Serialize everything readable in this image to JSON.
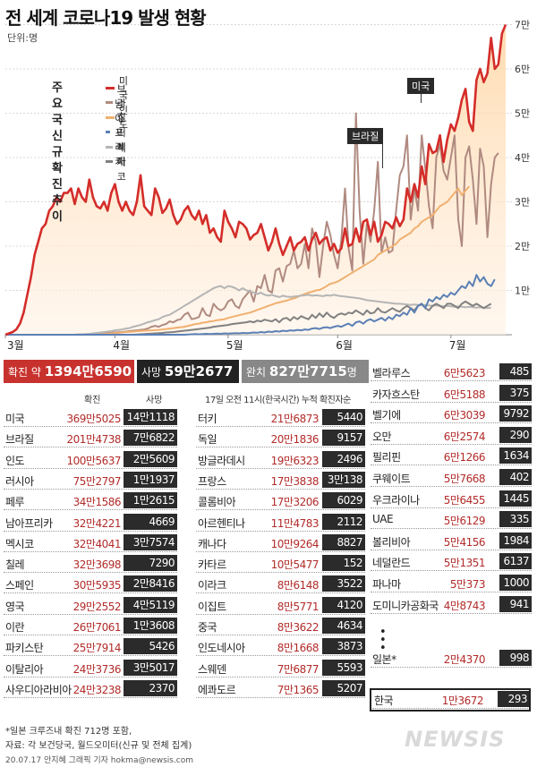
{
  "title": "전 세계 코로나19 발생 현황",
  "unit": "단위:명",
  "legend_title": [
    "주요국",
    "신규확진",
    "추이"
  ],
  "annotations": {
    "us": "미국",
    "brazil": "브라질"
  },
  "chart_data": {
    "type": "line",
    "title": "전 세계 코로나19 발생 현황",
    "xlabel": "",
    "ylabel": "",
    "x_tick_labels": [
      "3월",
      "4월",
      "5월",
      "6월",
      "7월"
    ],
    "y_tick_labels": [
      "1만",
      "2만",
      "3만",
      "4만",
      "5만",
      "6만",
      "7만"
    ],
    "ylim": [
      0,
      72000
    ],
    "grid": true,
    "legend_position": "left",
    "series": [
      {
        "name": "미국",
        "color": "#d42d2a",
        "fill": true,
        "values": [
          0,
          300,
          600,
          1200,
          2500,
          5000,
          9000,
          13000,
          18000,
          21000,
          24000,
          25000,
          28000,
          29000,
          31000,
          30000,
          32000,
          32000,
          33000,
          29500,
          33000,
          31000,
          30000,
          35000,
          31000,
          29000,
          28500,
          30000,
          28000,
          32000,
          34000,
          30000,
          28000,
          30000,
          28000,
          27000,
          30000,
          36000,
          29000,
          28000,
          27000,
          33000,
          31000,
          27500,
          28500,
          30500,
          27000,
          25000,
          26000,
          28000,
          29000,
          27000,
          26000,
          28000,
          25000,
          27000,
          23000,
          24000,
          22000,
          21000,
          28000,
          25500,
          24000,
          22000,
          25500,
          25000,
          24000,
          21500,
          22500,
          23000,
          25000,
          22000,
          19000,
          21000,
          24000,
          20500,
          18000,
          20000,
          22000,
          19000,
          20500,
          21000,
          22000,
          19000,
          21500,
          23000,
          20500,
          21500,
          22000,
          19000,
          20500,
          18500,
          19500,
          24000,
          20000,
          20500,
          24000,
          21000,
          25500,
          26000,
          22500,
          25500,
          21000,
          22500,
          25500,
          25000,
          24000,
          26500,
          24500,
          26000,
          33000,
          30000,
          34000,
          31000,
          38000,
          34000,
          43000,
          41000,
          41500,
          45000,
          39000,
          44000,
          47500,
          46000,
          49000,
          53000,
          55500,
          48000,
          46000,
          57500,
          60000,
          57000,
          59000,
          67000,
          60000,
          61000,
          68000,
          70000
        ]
      },
      {
        "name": "브라질",
        "color": "#b08a80",
        "fill": false,
        "values": [
          0,
          0,
          0,
          0,
          0,
          0,
          0,
          0,
          0,
          0,
          0,
          0,
          0,
          0,
          0,
          0,
          0,
          0,
          0,
          0,
          50,
          80,
          100,
          150,
          200,
          250,
          300,
          350,
          400,
          450,
          500,
          550,
          600,
          700,
          800,
          900,
          1000,
          1100,
          1200,
          1400,
          1800,
          2000,
          1800,
          2200,
          2400,
          3000,
          2800,
          3300,
          3500,
          4500,
          5000,
          3500,
          3700,
          4000,
          6000,
          4500,
          4200,
          7000,
          6000,
          5500,
          6000,
          7500,
          8000,
          6500,
          6000,
          8000,
          9000,
          10000,
          7500,
          11000,
          10500,
          13500,
          10000,
          9500,
          14500,
          15000,
          12000,
          15500,
          16000,
          19000,
          15000,
          16000,
          20500,
          15000,
          24000,
          21000,
          13000,
          20000,
          25500,
          22500,
          18000,
          15000,
          21500,
          33000,
          19500,
          14500,
          50000,
          28000,
          16000,
          25000,
          21000,
          28000,
          39000,
          18500,
          22000,
          18500,
          19000,
          28000,
          36000,
          38000,
          45000,
          26000,
          33000,
          28000,
          45000,
          37500,
          29000,
          24000,
          40000,
          43000,
          37000,
          35000,
          40000,
          45000,
          26000,
          20000,
          40000,
          42500,
          35000,
          25000,
          42000,
          38000,
          22000,
          34000,
          40000,
          41000
        ]
      },
      {
        "name": "인도",
        "color": "#f0b070",
        "fill": false,
        "values": [
          0,
          0,
          0,
          0,
          0,
          0,
          0,
          0,
          0,
          0,
          0,
          0,
          0,
          0,
          0,
          0,
          0,
          0,
          0,
          0,
          0,
          0,
          0,
          0,
          0,
          50,
          100,
          150,
          200,
          300,
          350,
          400,
          500,
          600,
          650,
          700,
          800,
          850,
          900,
          950,
          1000,
          1050,
          1100,
          1200,
          1300,
          1400,
          1500,
          1600,
          1700,
          1800,
          2000,
          2200,
          2400,
          2500,
          2700,
          2800,
          3000,
          3100,
          3300,
          3400,
          3500,
          3800,
          4000,
          4200,
          4400,
          4600,
          4800,
          5000,
          5300,
          5600,
          5900,
          6200,
          6500,
          6800,
          7100,
          7300,
          7500,
          7700,
          8000,
          8200,
          8500,
          8900,
          9200,
          9500,
          9700,
          10000,
          10100,
          10500,
          11000,
          11500,
          11700,
          12000,
          12500,
          13000,
          13500,
          14000,
          14500,
          15000,
          15500,
          16000,
          16500,
          17000,
          18000,
          18500,
          19000,
          19500,
          20000,
          20500,
          21500,
          22000,
          22500,
          23000,
          24000,
          24500,
          25500,
          26000,
          26500,
          27000,
          28000,
          29000,
          29500,
          30000,
          31000,
          32000,
          33000,
          31500,
          32500,
          33500
        ]
      },
      {
        "name": "남아프리카",
        "color": "#5b80b5",
        "fill": false,
        "values": [
          0,
          0,
          0,
          0,
          0,
          0,
          0,
          0,
          0,
          0,
          0,
          0,
          0,
          0,
          0,
          0,
          0,
          0,
          0,
          0,
          0,
          0,
          0,
          0,
          0,
          0,
          0,
          0,
          0,
          0,
          0,
          0,
          0,
          0,
          0,
          0,
          0,
          0,
          0,
          0,
          0,
          0,
          0,
          0,
          0,
          0,
          0,
          0,
          0,
          0,
          50,
          100,
          150,
          100,
          150,
          200,
          150,
          200,
          250,
          200,
          300,
          250,
          300,
          350,
          300,
          400,
          350,
          400,
          500,
          450,
          600,
          500,
          700,
          600,
          800,
          700,
          900,
          800,
          1000,
          900,
          1100,
          1000,
          1200,
          1100,
          1400,
          1500,
          1300,
          1600,
          1700,
          1500,
          1800,
          2000,
          1800,
          2200,
          2500,
          2000,
          2800,
          3000,
          2500,
          3200,
          3500,
          3000,
          3400,
          3800,
          3200,
          4000,
          3500,
          4500,
          4200,
          5000,
          4500,
          6000,
          5000,
          6500,
          7000,
          6000,
          8000,
          7500,
          8500,
          8000,
          9000,
          8500,
          9500,
          9000,
          10000,
          11000,
          10500,
          12000,
          11000,
          13500,
          12000,
          13000,
          11500,
          11000,
          12500
        ]
      },
      {
        "name": "러시아",
        "color": "#b5b5b5",
        "fill": false,
        "values": [
          0,
          0,
          0,
          0,
          0,
          0,
          0,
          0,
          0,
          0,
          0,
          0,
          0,
          0,
          0,
          0,
          0,
          0,
          0,
          0,
          50,
          100,
          150,
          200,
          300,
          400,
          500,
          600,
          700,
          800,
          1000,
          1100,
          1200,
          1400,
          1500,
          1800,
          2000,
          2200,
          2500,
          2800,
          3000,
          3300,
          3500,
          4000,
          4300,
          4500,
          5000,
          5500,
          6000,
          6500,
          7000,
          7500,
          8000,
          8500,
          9000,
          9500,
          10000,
          10500,
          10800,
          11000,
          10500,
          11000,
          10800,
          10500,
          10000,
          10500,
          10000,
          9800,
          9500,
          9200,
          9500,
          9000,
          8800,
          9000,
          8700,
          8500,
          8800,
          8600,
          8500,
          8600,
          8700,
          8800,
          8900,
          9000,
          8800,
          8900,
          8800,
          8700,
          8900,
          8800,
          9000,
          8800,
          8700,
          8600,
          8500,
          8400,
          8300,
          8200,
          8000,
          7800,
          7700,
          7600,
          7500,
          7400,
          7300,
          7200,
          7100,
          7000,
          7000,
          6900,
          6800,
          6700,
          6800,
          6700,
          6600,
          6700,
          6600,
          6500,
          6600,
          6500,
          6400,
          6500,
          6400,
          6300,
          6400,
          6300,
          6200,
          6300,
          6200,
          6100,
          6200,
          6100,
          6000,
          6100
        ]
      },
      {
        "name": "멕시코",
        "color": "#808080",
        "fill": false,
        "values": [
          0,
          0,
          0,
          0,
          0,
          0,
          0,
          0,
          0,
          0,
          0,
          0,
          0,
          0,
          0,
          0,
          0,
          0,
          0,
          0,
          0,
          0,
          0,
          0,
          0,
          0,
          0,
          0,
          0,
          0,
          0,
          0,
          0,
          0,
          0,
          0,
          50,
          100,
          150,
          200,
          250,
          300,
          350,
          400,
          500,
          550,
          600,
          700,
          800,
          900,
          1000,
          1100,
          1200,
          1300,
          1400,
          1500,
          1600,
          1800,
          1900,
          2000,
          2100,
          2200,
          2400,
          2500,
          2600,
          2700,
          2800,
          3000,
          2800,
          3200,
          3000,
          3400,
          3200,
          3000,
          3500,
          2800,
          3600,
          3800,
          3200,
          4000,
          3500,
          4200,
          3800,
          3500,
          4500,
          3800,
          4800,
          4000,
          5000,
          4200,
          3800,
          4500,
          4800,
          4500,
          5000,
          4800,
          5500,
          5000,
          4500,
          5500,
          4800,
          5000,
          6000,
          5200,
          5000,
          5500,
          6000,
          5500,
          5200,
          6000,
          6500,
          6000,
          5500,
          6500,
          7000,
          6000,
          5500,
          6500,
          7000,
          6500,
          6000,
          7000,
          7000,
          6500,
          6000,
          7000,
          7500,
          7000,
          6500,
          7000,
          6500,
          6000,
          6500,
          7000
        ]
      }
    ]
  },
  "totals": {
    "confirmed_label": "확진 약",
    "confirmed_value": "1394만6590",
    "death_label": "사망",
    "death_value": "59만2677",
    "recovered_label": "완치",
    "recovered_value": "827만7715",
    "recovered_unit": "명"
  },
  "col_headers": {
    "confirmed": "확진",
    "deaths": "사망",
    "middle_note": "17일 오전 11시(한국시간) 누적 확진자순"
  },
  "countries_col1": [
    {
      "name": "미국",
      "confirmed": "369만5025",
      "deaths": "14만1118"
    },
    {
      "name": "브라질",
      "confirmed": "201만4738",
      "deaths": "7만6822"
    },
    {
      "name": "인도",
      "confirmed": "100만5637",
      "deaths": "2만5609"
    },
    {
      "name": "러시아",
      "confirmed": "75만2797",
      "deaths": "1만1937"
    },
    {
      "name": "페루",
      "confirmed": "34만1586",
      "deaths": "1만2615"
    },
    {
      "name": "남아프리카",
      "confirmed": "32만4221",
      "deaths": "4669"
    },
    {
      "name": "멕시코",
      "confirmed": "32만4041",
      "deaths": "3만7574"
    },
    {
      "name": "칠레",
      "confirmed": "32만3698",
      "deaths": "7290"
    },
    {
      "name": "스페인",
      "confirmed": "30만5935",
      "deaths": "2만8416"
    },
    {
      "name": "영국",
      "confirmed": "29만2552",
      "deaths": "4만5119"
    },
    {
      "name": "이란",
      "confirmed": "26만7061",
      "deaths": "1만3608"
    },
    {
      "name": "파키스탄",
      "confirmed": "25만7914",
      "deaths": "5426"
    },
    {
      "name": "이탈리아",
      "confirmed": "24만3736",
      "deaths": "3만5017"
    },
    {
      "name": "사우디아라비아",
      "confirmed": "24만3238",
      "deaths": "2370"
    }
  ],
  "countries_col2": [
    {
      "name": "터키",
      "confirmed": "21만6873",
      "deaths": "5440"
    },
    {
      "name": "독일",
      "confirmed": "20만1836",
      "deaths": "9157"
    },
    {
      "name": "방글라데시",
      "confirmed": "19만6323",
      "deaths": "2496"
    },
    {
      "name": "프랑스",
      "confirmed": "17만3838",
      "deaths": "3만138"
    },
    {
      "name": "콜롬비아",
      "confirmed": "17만3206",
      "deaths": "6029"
    },
    {
      "name": "아르헨티나",
      "confirmed": "11만4783",
      "deaths": "2112"
    },
    {
      "name": "캐나다",
      "confirmed": "10만9264",
      "deaths": "8827"
    },
    {
      "name": "카타르",
      "confirmed": "10만5477",
      "deaths": "152"
    },
    {
      "name": "이라크",
      "confirmed": "8만6148",
      "deaths": "3522"
    },
    {
      "name": "이집트",
      "confirmed": "8만5771",
      "deaths": "4120"
    },
    {
      "name": "중국",
      "confirmed": "8만3622",
      "deaths": "4634"
    },
    {
      "name": "인도네시아",
      "confirmed": "8만1668",
      "deaths": "3873"
    },
    {
      "name": "스웨덴",
      "confirmed": "7만6877",
      "deaths": "5593"
    },
    {
      "name": "에콰도르",
      "confirmed": "7만1365",
      "deaths": "5207"
    }
  ],
  "countries_col3": [
    {
      "name": "벨라루스",
      "confirmed": "6만5623",
      "deaths": "485"
    },
    {
      "name": "카자흐스탄",
      "confirmed": "6만5188",
      "deaths": "375"
    },
    {
      "name": "벨기에",
      "confirmed": "6만3039",
      "deaths": "9792"
    },
    {
      "name": "오만",
      "confirmed": "6만2574",
      "deaths": "290"
    },
    {
      "name": "필리핀",
      "confirmed": "6만1266",
      "deaths": "1634"
    },
    {
      "name": "쿠웨이트",
      "confirmed": "5만7668",
      "deaths": "402"
    },
    {
      "name": "우크라이나",
      "confirmed": "5만6455",
      "deaths": "1445"
    },
    {
      "name": "UAE",
      "confirmed": "5만6129",
      "deaths": "335"
    },
    {
      "name": "볼리비아",
      "confirmed": "5만4156",
      "deaths": "1984"
    },
    {
      "name": "네덜란드",
      "confirmed": "5만1351",
      "deaths": "6137"
    },
    {
      "name": "파나마",
      "confirmed": "5만373",
      "deaths": "1000"
    },
    {
      "name": "도미니카공화국",
      "confirmed": "4만8743",
      "deaths": "941"
    }
  ],
  "japan": {
    "name": "일본*",
    "confirmed": "2만4370",
    "deaths": "998"
  },
  "korea": {
    "name": "한국",
    "confirmed": "1만3672",
    "deaths": "293"
  },
  "footnote1": "*일본 크루즈내 확진 712명 포함,",
  "footnote2": "자료: 각 보건당국, 월드오미터(신규 및 전체 집계)",
  "credit": "20.07.17 안지혜 그래픽 기자 hokma@newsis.com",
  "logo": "NEWSIS"
}
